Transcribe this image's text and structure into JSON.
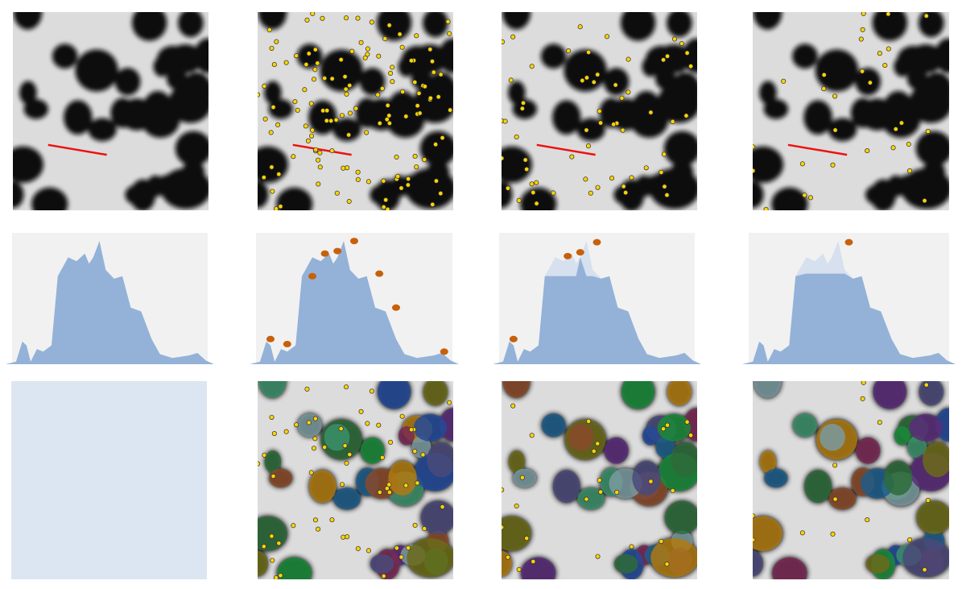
{
  "colors": {
    "background_image": "#dcdcdc",
    "blob": "#111111",
    "marker_fill": "#ffd400",
    "marker_stroke": "#333333",
    "line": "#ee1111",
    "profile_fill": "#94b2d8",
    "profile_ghost": "#d6e0ee",
    "plot_bg": "#f1f1f1",
    "peak": "#c8600a",
    "empty_panel": "#dce6f2"
  },
  "columns": [
    {
      "markers": 0,
      "peaks": [],
      "plateau": null
    },
    {
      "markers": 130,
      "peaks": [
        [
          0.1,
          0.2
        ],
        [
          0.18,
          0.16
        ],
        [
          0.3,
          0.7
        ],
        [
          0.36,
          0.88
        ],
        [
          0.42,
          0.9
        ],
        [
          0.5,
          0.98
        ],
        [
          0.62,
          0.72
        ],
        [
          0.7,
          0.45
        ],
        [
          0.93,
          0.1
        ]
      ],
      "plateau": null
    },
    {
      "markers": 60,
      "peaks": [
        [
          0.1,
          0.2
        ],
        [
          0.36,
          0.86
        ],
        [
          0.42,
          0.89
        ],
        [
          0.5,
          0.97
        ]
      ],
      "plateau": 0.7
    },
    {
      "markers": 30,
      "peaks": [
        [
          0.5,
          0.97
        ]
      ],
      "plateau": 0.72
    }
  ],
  "profile": {
    "x": [
      0,
      0.05,
      0.08,
      0.1,
      0.12,
      0.15,
      0.18,
      0.22,
      0.25,
      0.3,
      0.34,
      0.38,
      0.4,
      0.42,
      0.45,
      0.48,
      0.52,
      0.56,
      0.6,
      0.65,
      0.7,
      0.74,
      0.8,
      0.88,
      0.92,
      0.96,
      1
    ],
    "y": [
      0,
      0.02,
      0.18,
      0.15,
      0.02,
      0.12,
      0.1,
      0.15,
      0.7,
      0.85,
      0.82,
      0.88,
      0.8,
      0.85,
      0.98,
      0.75,
      0.68,
      0.7,
      0.45,
      0.42,
      0.2,
      0.08,
      0.05,
      0.07,
      0.09,
      0.03,
      0
    ]
  }
}
